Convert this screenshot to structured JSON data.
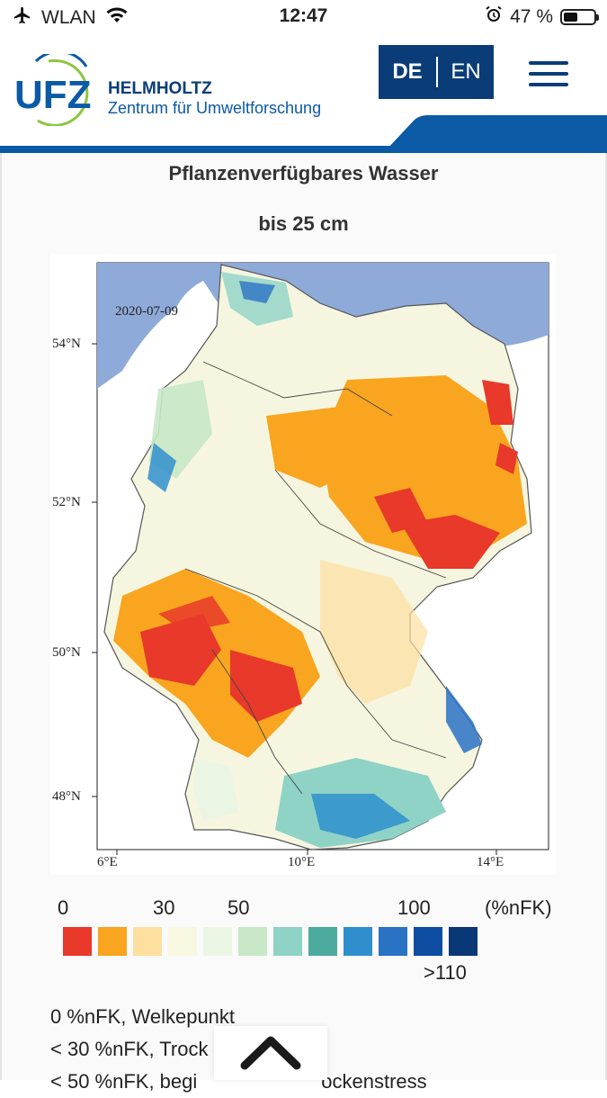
{
  "status_bar": {
    "carrier": "WLAN",
    "time": "12:47",
    "battery_percent": "47 %",
    "battery_level": 0.47
  },
  "header": {
    "logo_text": "UFZ",
    "org_name": "HELMHOLTZ",
    "org_subtitle": "Zentrum für Umweltforschung",
    "lang_de": "DE",
    "lang_en": "EN",
    "brand_color": "#0a3d78",
    "accent_color": "#0a5aa5",
    "logo_green": "#8cc63f"
  },
  "content": {
    "title": "Pflanzenverfügbares Wasser",
    "subtitle": "bis 25 cm"
  },
  "map": {
    "date": "2020-07-09",
    "lat_labels": [
      "54°N",
      "52°N",
      "50°N",
      "48°N"
    ],
    "lon_labels": [
      "6°E",
      "10°E",
      "14°E"
    ],
    "sea_color": "#8eaad8"
  },
  "legend": {
    "ticks": [
      "0",
      "30",
      "50",
      "100",
      "(%nFK)"
    ],
    "max_label": ">110",
    "colors": [
      "#e8392a",
      "#f9a51f",
      "#fde0a0",
      "#f8f8e0",
      "#eaf5e4",
      "#c8e8c8",
      "#8fd3c6",
      "#4dab9e",
      "#2f8fcc",
      "#2a72c4",
      "#0d4da2",
      "#0a3876"
    ]
  },
  "notes": [
    "0 %nFK, Welkepunkt",
    "< 30 %nFK, Trock",
    "< 50 %nFK, begi",
    "ockenstress"
  ],
  "scroll_up_icon": "chevron-up-icon"
}
